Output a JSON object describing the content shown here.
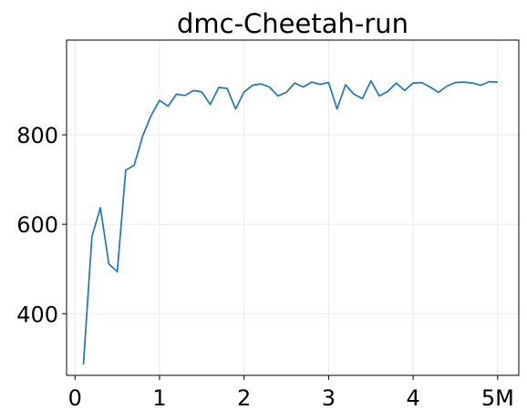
{
  "chart_data": {
    "type": "line",
    "title": "dmc-Cheetah-run",
    "xlabel": "",
    "ylabel": "",
    "xlim": [
      -0.1,
      5.25
    ],
    "ylim": [
      262,
      1012
    ],
    "x_ticks": [
      {
        "value": 0,
        "label": "0"
      },
      {
        "value": 1,
        "label": "1"
      },
      {
        "value": 2,
        "label": "2"
      },
      {
        "value": 3,
        "label": "3"
      },
      {
        "value": 4,
        "label": "4"
      },
      {
        "value": 5,
        "label": "5M"
      }
    ],
    "y_ticks": [
      {
        "value": 400,
        "label": "400"
      },
      {
        "value": 600,
        "label": "600"
      },
      {
        "value": 800,
        "label": "800"
      }
    ],
    "grid": true,
    "line_color": "#1f77b4",
    "series": [
      {
        "x": [
          0.1,
          0.2,
          0.3,
          0.4,
          0.5,
          0.6,
          0.7,
          0.8,
          0.9,
          1.0,
          1.1,
          1.2,
          1.3,
          1.4,
          1.5,
          1.6,
          1.7,
          1.8,
          1.9,
          2.0,
          2.1,
          2.2,
          2.3,
          2.4,
          2.5,
          2.6,
          2.7,
          2.8,
          2.9,
          3.0,
          3.1,
          3.2,
          3.3,
          3.4,
          3.5,
          3.6,
          3.7,
          3.8,
          3.9,
          4.0,
          4.1,
          4.2,
          4.3,
          4.4,
          4.5,
          4.6,
          4.7,
          4.8,
          4.9,
          5.0
        ],
        "y": [
          286,
          572,
          637,
          511,
          494,
          721,
          732,
          797,
          843,
          877,
          864,
          891,
          888,
          899,
          896,
          868,
          906,
          904,
          858,
          896,
          911,
          914,
          907,
          887,
          895,
          916,
          907,
          918,
          913,
          917,
          858,
          912,
          891,
          881,
          921,
          887,
          897,
          916,
          899,
          916,
          917,
          907,
          895,
          909,
          917,
          918,
          916,
          911,
          919,
          918
        ]
      }
    ]
  }
}
